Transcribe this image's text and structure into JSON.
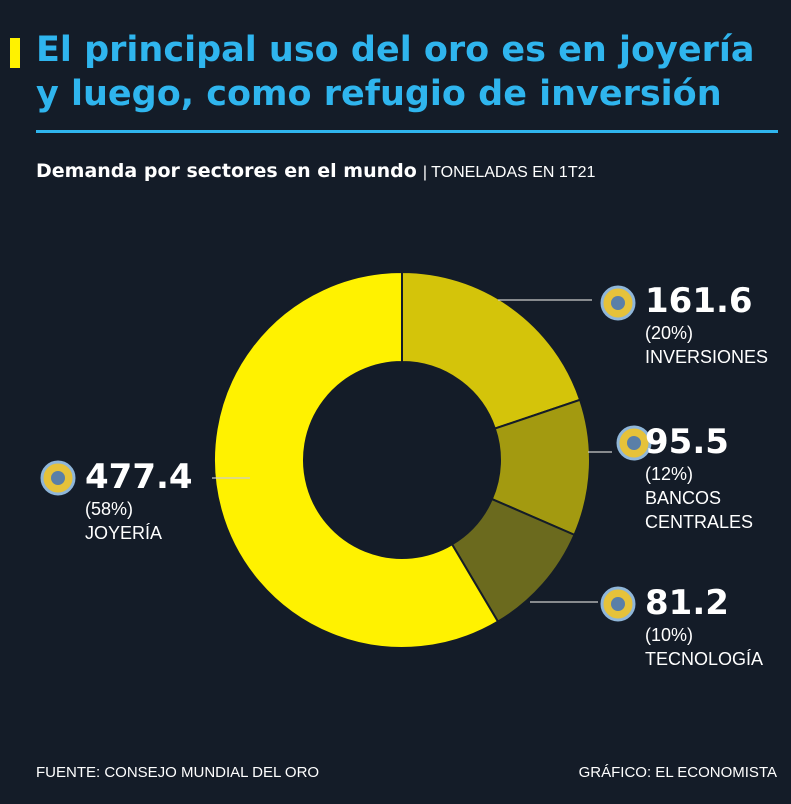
{
  "chart_data": {
    "type": "pie",
    "title": "El principal uso del oro es en joyería y luego, como refugio de inversión",
    "subtitle": "Demanda por sectores en el mundo",
    "unit": "| TONELADAS EN 1T21",
    "categories": [
      "INVERSIONES",
      "BANCOS CENTRALES",
      "TECNOLOGÍA",
      "JOYERÍA"
    ],
    "values": [
      161.6,
      95.5,
      81.2,
      477.4
    ],
    "shares": [
      20,
      12,
      10,
      58
    ],
    "share_labels": [
      "(20%)",
      "(12%)",
      "(10%)",
      "(58%)"
    ],
    "colors": [
      "#d4c40a",
      "#a39a10",
      "#6b6a1e",
      "#fff200"
    ],
    "source": "FUENTE: CONSEJO MUNDIAL DEL ORO",
    "credit": "GRÁFICO: EL ECONOMISTA"
  }
}
